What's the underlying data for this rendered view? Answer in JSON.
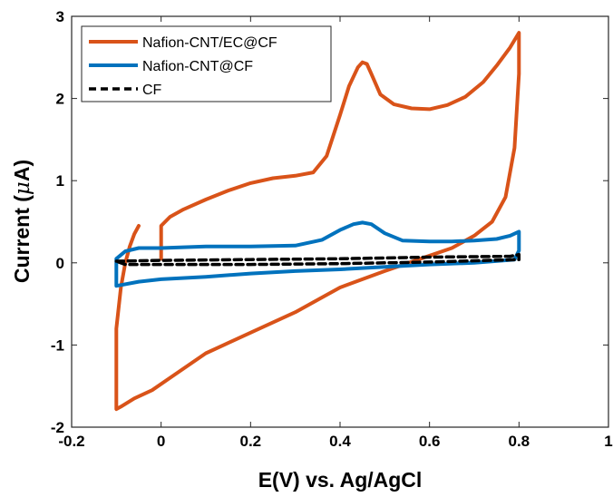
{
  "chart_data": {
    "type": "line",
    "title": "",
    "xlabel": "E(V) vs. Ag/AgCl",
    "ylabel_main": "Current (",
    "ylabel_symbol": "μ",
    "ylabel_unit": "A)",
    "xlim": [
      -0.2,
      1.0
    ],
    "ylim": [
      -2,
      3
    ],
    "xticks": [
      -0.2,
      0,
      0.2,
      0.4,
      0.6,
      0.8,
      1
    ],
    "xtick_labels": [
      "-0.2",
      "0",
      "0.2",
      "0.4",
      "0.6",
      "0.8",
      "1"
    ],
    "yticks": [
      -2,
      -1,
      0,
      1,
      2,
      3
    ],
    "ytick_labels": [
      "-2",
      "-1",
      "0",
      "1",
      "2",
      "3"
    ],
    "grid": false,
    "legend_position": "top-left",
    "series": [
      {
        "name": "Nafion-CNT/EC@CF",
        "color": "#D95319",
        "style": "solid",
        "x": [
          0.0,
          0.0,
          0.02,
          0.05,
          0.1,
          0.15,
          0.2,
          0.25,
          0.3,
          0.34,
          0.37,
          0.4,
          0.42,
          0.44,
          0.45,
          0.46,
          0.47,
          0.49,
          0.52,
          0.56,
          0.6,
          0.64,
          0.68,
          0.72,
          0.75,
          0.78,
          0.8,
          0.8,
          0.79,
          0.77,
          0.74,
          0.7,
          0.65,
          0.58,
          0.5,
          0.45,
          0.4,
          0.35,
          0.3,
          0.2,
          0.1,
          0.02,
          -0.02,
          -0.06,
          -0.09,
          -0.1,
          -0.1,
          -0.09,
          -0.08,
          -0.07,
          -0.06,
          -0.05
        ],
        "y": [
          0.05,
          0.45,
          0.56,
          0.65,
          0.77,
          0.88,
          0.97,
          1.03,
          1.06,
          1.1,
          1.3,
          1.8,
          2.15,
          2.38,
          2.44,
          2.42,
          2.3,
          2.05,
          1.93,
          1.88,
          1.87,
          1.92,
          2.02,
          2.2,
          2.4,
          2.62,
          2.8,
          2.3,
          1.4,
          0.8,
          0.5,
          0.33,
          0.18,
          0.05,
          -0.1,
          -0.2,
          -0.3,
          -0.45,
          -0.6,
          -0.85,
          -1.1,
          -1.4,
          -1.55,
          -1.65,
          -1.75,
          -1.78,
          -0.8,
          -0.3,
          0.0,
          0.2,
          0.35,
          0.45
        ]
      },
      {
        "name": "Nafion-CNT@CF",
        "color": "#0072BD",
        "style": "solid",
        "x": [
          0.0,
          0.05,
          0.1,
          0.2,
          0.3,
          0.36,
          0.4,
          0.43,
          0.45,
          0.47,
          0.5,
          0.54,
          0.6,
          0.65,
          0.7,
          0.75,
          0.78,
          0.8,
          0.8,
          0.79,
          0.7,
          0.6,
          0.5,
          0.4,
          0.3,
          0.2,
          0.1,
          0.0,
          -0.05,
          -0.09,
          -0.1,
          -0.1,
          -0.08,
          -0.05,
          -0.02,
          0.0
        ],
        "y": [
          0.18,
          0.19,
          0.2,
          0.2,
          0.21,
          0.28,
          0.4,
          0.47,
          0.49,
          0.47,
          0.36,
          0.27,
          0.26,
          0.26,
          0.27,
          0.29,
          0.33,
          0.38,
          0.15,
          0.04,
          0.0,
          -0.02,
          -0.05,
          -0.08,
          -0.1,
          -0.13,
          -0.17,
          -0.2,
          -0.23,
          -0.27,
          -0.28,
          0.05,
          0.14,
          0.18,
          0.18,
          0.18
        ]
      },
      {
        "name": "CF",
        "color": "#000000",
        "style": "dashed",
        "x": [
          -0.1,
          0.0,
          0.2,
          0.4,
          0.6,
          0.78,
          0.8,
          0.8,
          0.6,
          0.4,
          0.2,
          0.0,
          -0.08,
          -0.1
        ],
        "y": [
          0.02,
          0.03,
          0.04,
          0.05,
          0.07,
          0.08,
          0.1,
          0.04,
          0.01,
          -0.01,
          -0.02,
          -0.02,
          -0.02,
          0.02
        ]
      }
    ]
  }
}
